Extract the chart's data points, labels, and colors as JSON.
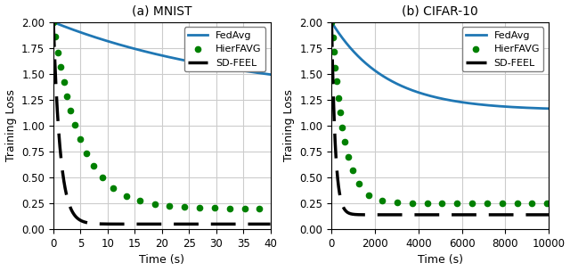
{
  "subplot_a": {
    "title": "(a) MNIST",
    "xlabel": "Time (s)",
    "ylabel": "Training Loss",
    "xlim": [
      0,
      40
    ],
    "ylim": [
      0,
      2.0
    ],
    "yticks": [
      0.0,
      0.25,
      0.5,
      0.75,
      1.0,
      1.25,
      1.5,
      1.75,
      2.0
    ],
    "xticks": [
      0,
      5,
      10,
      15,
      20,
      25,
      30,
      35,
      40
    ],
    "fedavg": {
      "y_start": 2.0,
      "y_end": 1.25,
      "decay": 0.028,
      "color": "#1f77b4",
      "linestyle": "solid",
      "linewidth": 2.0,
      "label": "FedAvg"
    },
    "hierfavg": {
      "y_start": 2.0,
      "y_end": 0.2,
      "decay": 0.2,
      "color": "#008000",
      "linewidth": 2.0,
      "label": "HierFAVG",
      "markersize": 4.5,
      "markevery": 0.05
    },
    "sdfeel": {
      "y_start": 2.0,
      "y_end": 0.05,
      "decay": 0.8,
      "color": "#000000",
      "linestyle": "dashed",
      "linewidth": 2.5,
      "label": "SD-FEEL",
      "dash_pattern": [
        8,
        4
      ]
    }
  },
  "subplot_b": {
    "title": "(b) CIFAR-10",
    "xlabel": "Time (s)",
    "ylabel": "Training Loss",
    "xlim": [
      0,
      10000
    ],
    "ylim": [
      0,
      2.0
    ],
    "yticks": [
      0.0,
      0.25,
      0.5,
      0.75,
      1.0,
      1.25,
      1.5,
      1.75,
      2.0
    ],
    "xticks": [
      0,
      2000,
      4000,
      6000,
      8000,
      10000
    ],
    "fedavg": {
      "y_start": 2.0,
      "y_end": 1.15,
      "decay": 0.0004,
      "color": "#1f77b4",
      "linestyle": "solid",
      "linewidth": 2.0,
      "label": "FedAvg"
    },
    "hierfavg": {
      "y_start": 2.0,
      "y_end": 0.25,
      "decay": 0.0018,
      "color": "#008000",
      "linewidth": 2.0,
      "label": "HierFAVG",
      "markersize": 4.5,
      "markevery": 0.05
    },
    "sdfeel": {
      "y_start": 2.0,
      "y_end": 0.14,
      "decay": 0.006,
      "color": "#000000",
      "linestyle": "dashed",
      "linewidth": 2.5,
      "label": "SD-FEEL",
      "dash_pattern": [
        8,
        4
      ]
    }
  }
}
